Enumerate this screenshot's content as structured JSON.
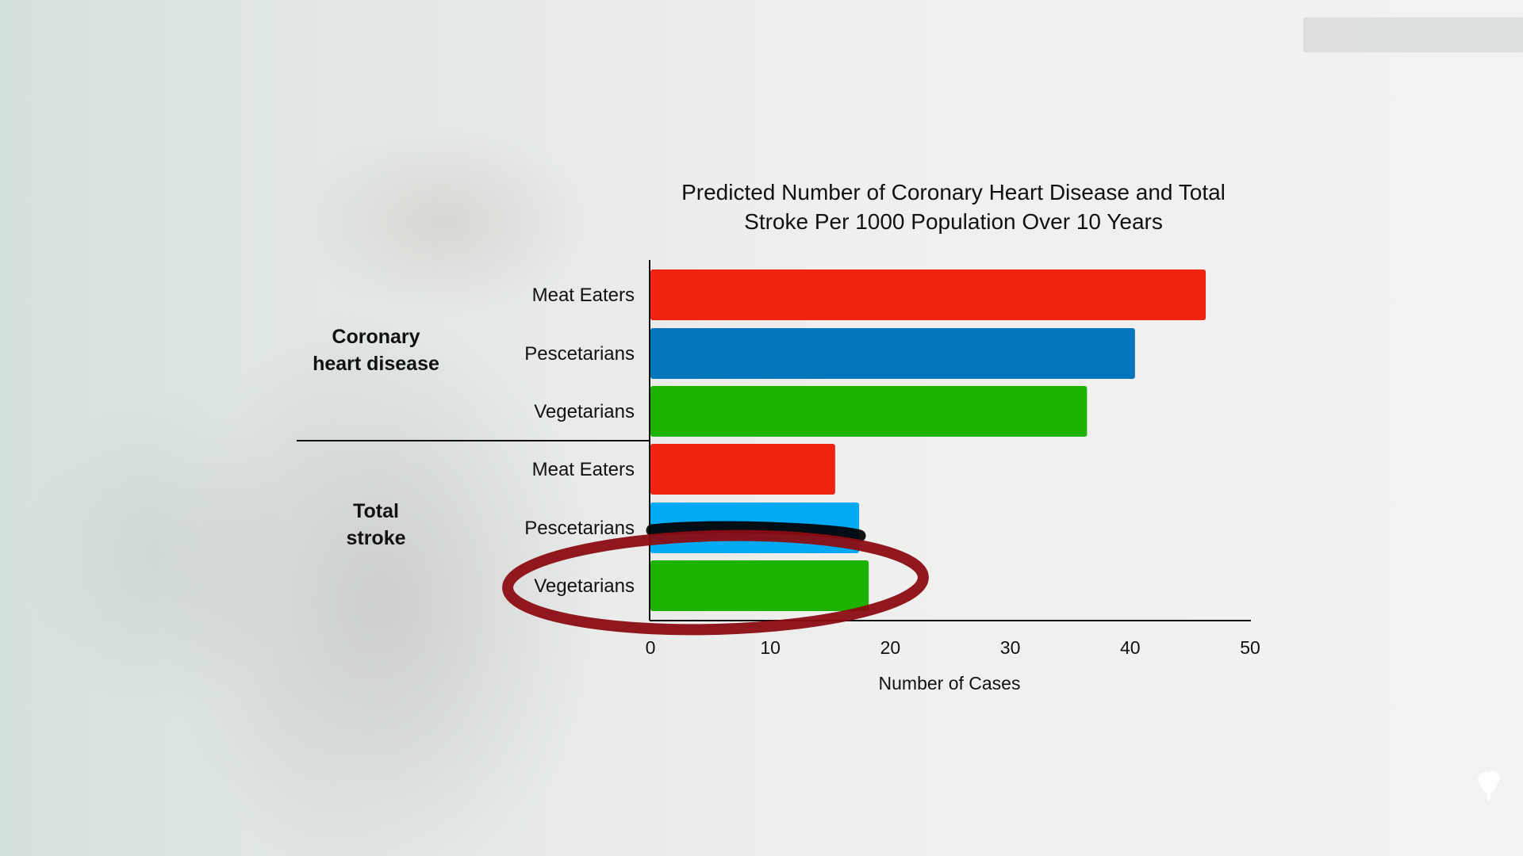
{
  "chart_data": {
    "type": "bar",
    "orientation": "horizontal",
    "title_lines": [
      "Predicted Number of Coronary Heart Disease and Total",
      "Stroke Per 1000 Population Over 10 Years"
    ],
    "xlabel": "Number of Cases",
    "xlim": [
      0,
      50
    ],
    "xticks": [
      "0",
      "10",
      "20",
      "30",
      "40",
      "50"
    ],
    "grid": false,
    "legend": "none",
    "groups": [
      {
        "name_lines": [
          "Coronary",
          "heart disease"
        ],
        "bars": [
          {
            "category": "Meat Eaters",
            "value": 46.3,
            "color": "#ee2410"
          },
          {
            "category": "Pescetarians",
            "value": 40.4,
            "color": "#0275bc"
          },
          {
            "category": "Vegetarians",
            "value": 36.4,
            "color": "#1db300"
          }
        ]
      },
      {
        "name_lines": [
          "Total",
          "stroke"
        ],
        "bars": [
          {
            "category": "Meat Eaters",
            "value": 15.4,
            "color": "#ee2410"
          },
          {
            "category": "Pescetarians",
            "value": 17.4,
            "color": "#02a9f4"
          },
          {
            "category": "Vegetarians",
            "value": 18.2,
            "color": "#1db300"
          }
        ]
      }
    ],
    "annotations": [
      {
        "type": "hand-drawn ellipse",
        "target": "Total stroke / Vegetarians",
        "color": "#8b0c12"
      },
      {
        "type": "hand-drawn underline",
        "target": "Total stroke / Pescetarians",
        "color": "#000000"
      }
    ]
  }
}
